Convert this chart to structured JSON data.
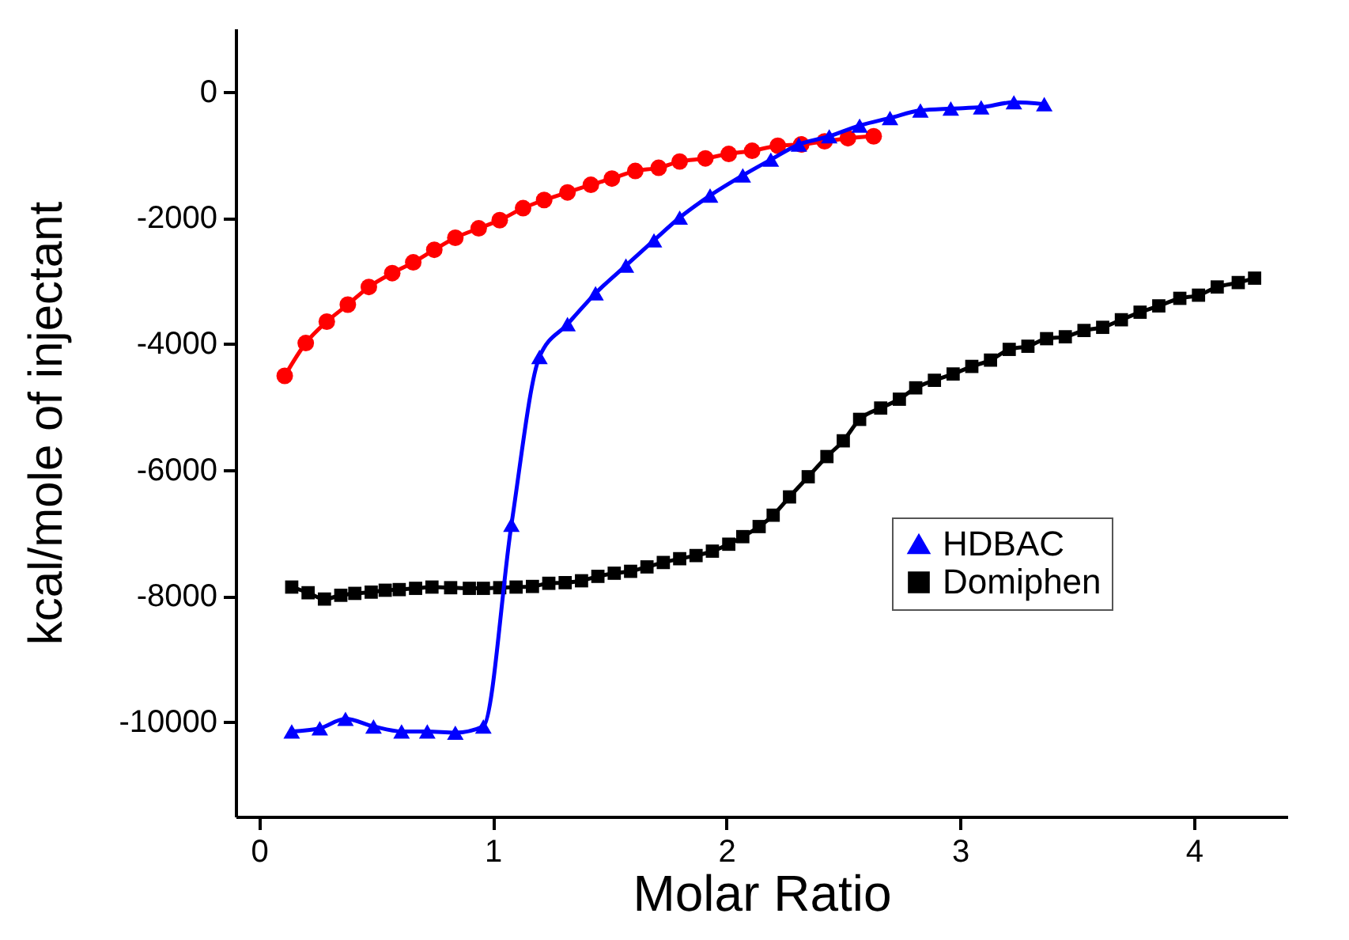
{
  "chart_data": {
    "type": "line",
    "xlabel": "Molar Ratio",
    "ylabel": "kcal/mole of injectant",
    "xlim": [
      -0.1,
      4.4
    ],
    "ylim": [
      -11500,
      1000
    ],
    "xticks": [
      0,
      1,
      2,
      3,
      4
    ],
    "yticks": [
      0,
      -2000,
      -4000,
      -6000,
      -8000,
      -10000
    ],
    "grid": false,
    "legend": "right",
    "line_style": "solid",
    "series": [
      {
        "name": "HDBAC",
        "color": "#0000ff",
        "marker": "triangle",
        "x": [
          0.14,
          0.26,
          0.37,
          0.49,
          0.61,
          0.72,
          0.84,
          0.96,
          1.08,
          1.2,
          1.32,
          1.44,
          1.57,
          1.69,
          1.8,
          1.93,
          2.07,
          2.19,
          2.31,
          2.44,
          2.57,
          2.7,
          2.83,
          2.96,
          3.09,
          3.23,
          3.36
        ],
        "values": [
          -10150,
          -10100,
          -9950,
          -10070,
          -10150,
          -10150,
          -10170,
          -10070,
          -6870,
          -4210,
          -3690,
          -3200,
          -2760,
          -2360,
          -2000,
          -1650,
          -1330,
          -1080,
          -840,
          -710,
          -540,
          -420,
          -300,
          -270,
          -250,
          -170,
          -200
        ]
      },
      {
        "color": "#ff0000",
        "marker": "circle",
        "x": [
          0.11,
          0.2,
          0.29,
          0.38,
          0.47,
          0.57,
          0.66,
          0.75,
          0.84,
          0.94,
          1.03,
          1.13,
          1.22,
          1.32,
          1.42,
          1.51,
          1.61,
          1.71,
          1.8,
          1.91,
          2.01,
          2.11,
          2.22,
          2.32,
          2.42,
          2.52,
          2.63
        ],
        "values": [
          -4510,
          -3990,
          -3650,
          -3380,
          -3100,
          -2880,
          -2710,
          -2510,
          -2320,
          -2170,
          -2040,
          -1850,
          -1720,
          -1600,
          -1480,
          -1380,
          -1260,
          -1210,
          -1110,
          -1060,
          -990,
          -940,
          -860,
          -840,
          -790,
          -740,
          -710
        ]
      },
      {
        "name": "Domiphen",
        "color": "#000000",
        "marker": "square",
        "x": [
          0.14,
          0.21,
          0.28,
          0.35,
          0.41,
          0.48,
          0.54,
          0.6,
          0.67,
          0.74,
          0.82,
          0.9,
          0.96,
          1.03,
          1.1,
          1.17,
          1.24,
          1.31,
          1.38,
          1.45,
          1.52,
          1.59,
          1.66,
          1.73,
          1.8,
          1.87,
          1.94,
          2.01,
          2.07,
          2.14,
          2.2,
          2.27,
          2.35,
          2.43,
          2.5,
          2.57,
          2.66,
          2.74,
          2.81,
          2.89,
          2.97,
          3.05,
          3.13,
          3.21,
          3.29,
          3.37,
          3.45,
          3.53,
          3.61,
          3.69,
          3.77,
          3.85,
          3.94,
          4.02,
          4.1,
          4.19,
          4.26
        ],
        "values": [
          -7860,
          -7950,
          -8050,
          -7990,
          -7960,
          -7940,
          -7910,
          -7900,
          -7880,
          -7860,
          -7870,
          -7880,
          -7880,
          -7870,
          -7860,
          -7850,
          -7800,
          -7790,
          -7760,
          -7690,
          -7640,
          -7610,
          -7540,
          -7470,
          -7410,
          -7360,
          -7290,
          -7180,
          -7060,
          -6900,
          -6720,
          -6430,
          -6110,
          -5790,
          -5540,
          -5200,
          -5020,
          -4880,
          -4700,
          -4580,
          -4480,
          -4360,
          -4260,
          -4090,
          -4040,
          -3920,
          -3890,
          -3790,
          -3740,
          -3620,
          -3500,
          -3400,
          -3280,
          -3230,
          -3100,
          -3030,
          -2960
        ]
      }
    ]
  }
}
